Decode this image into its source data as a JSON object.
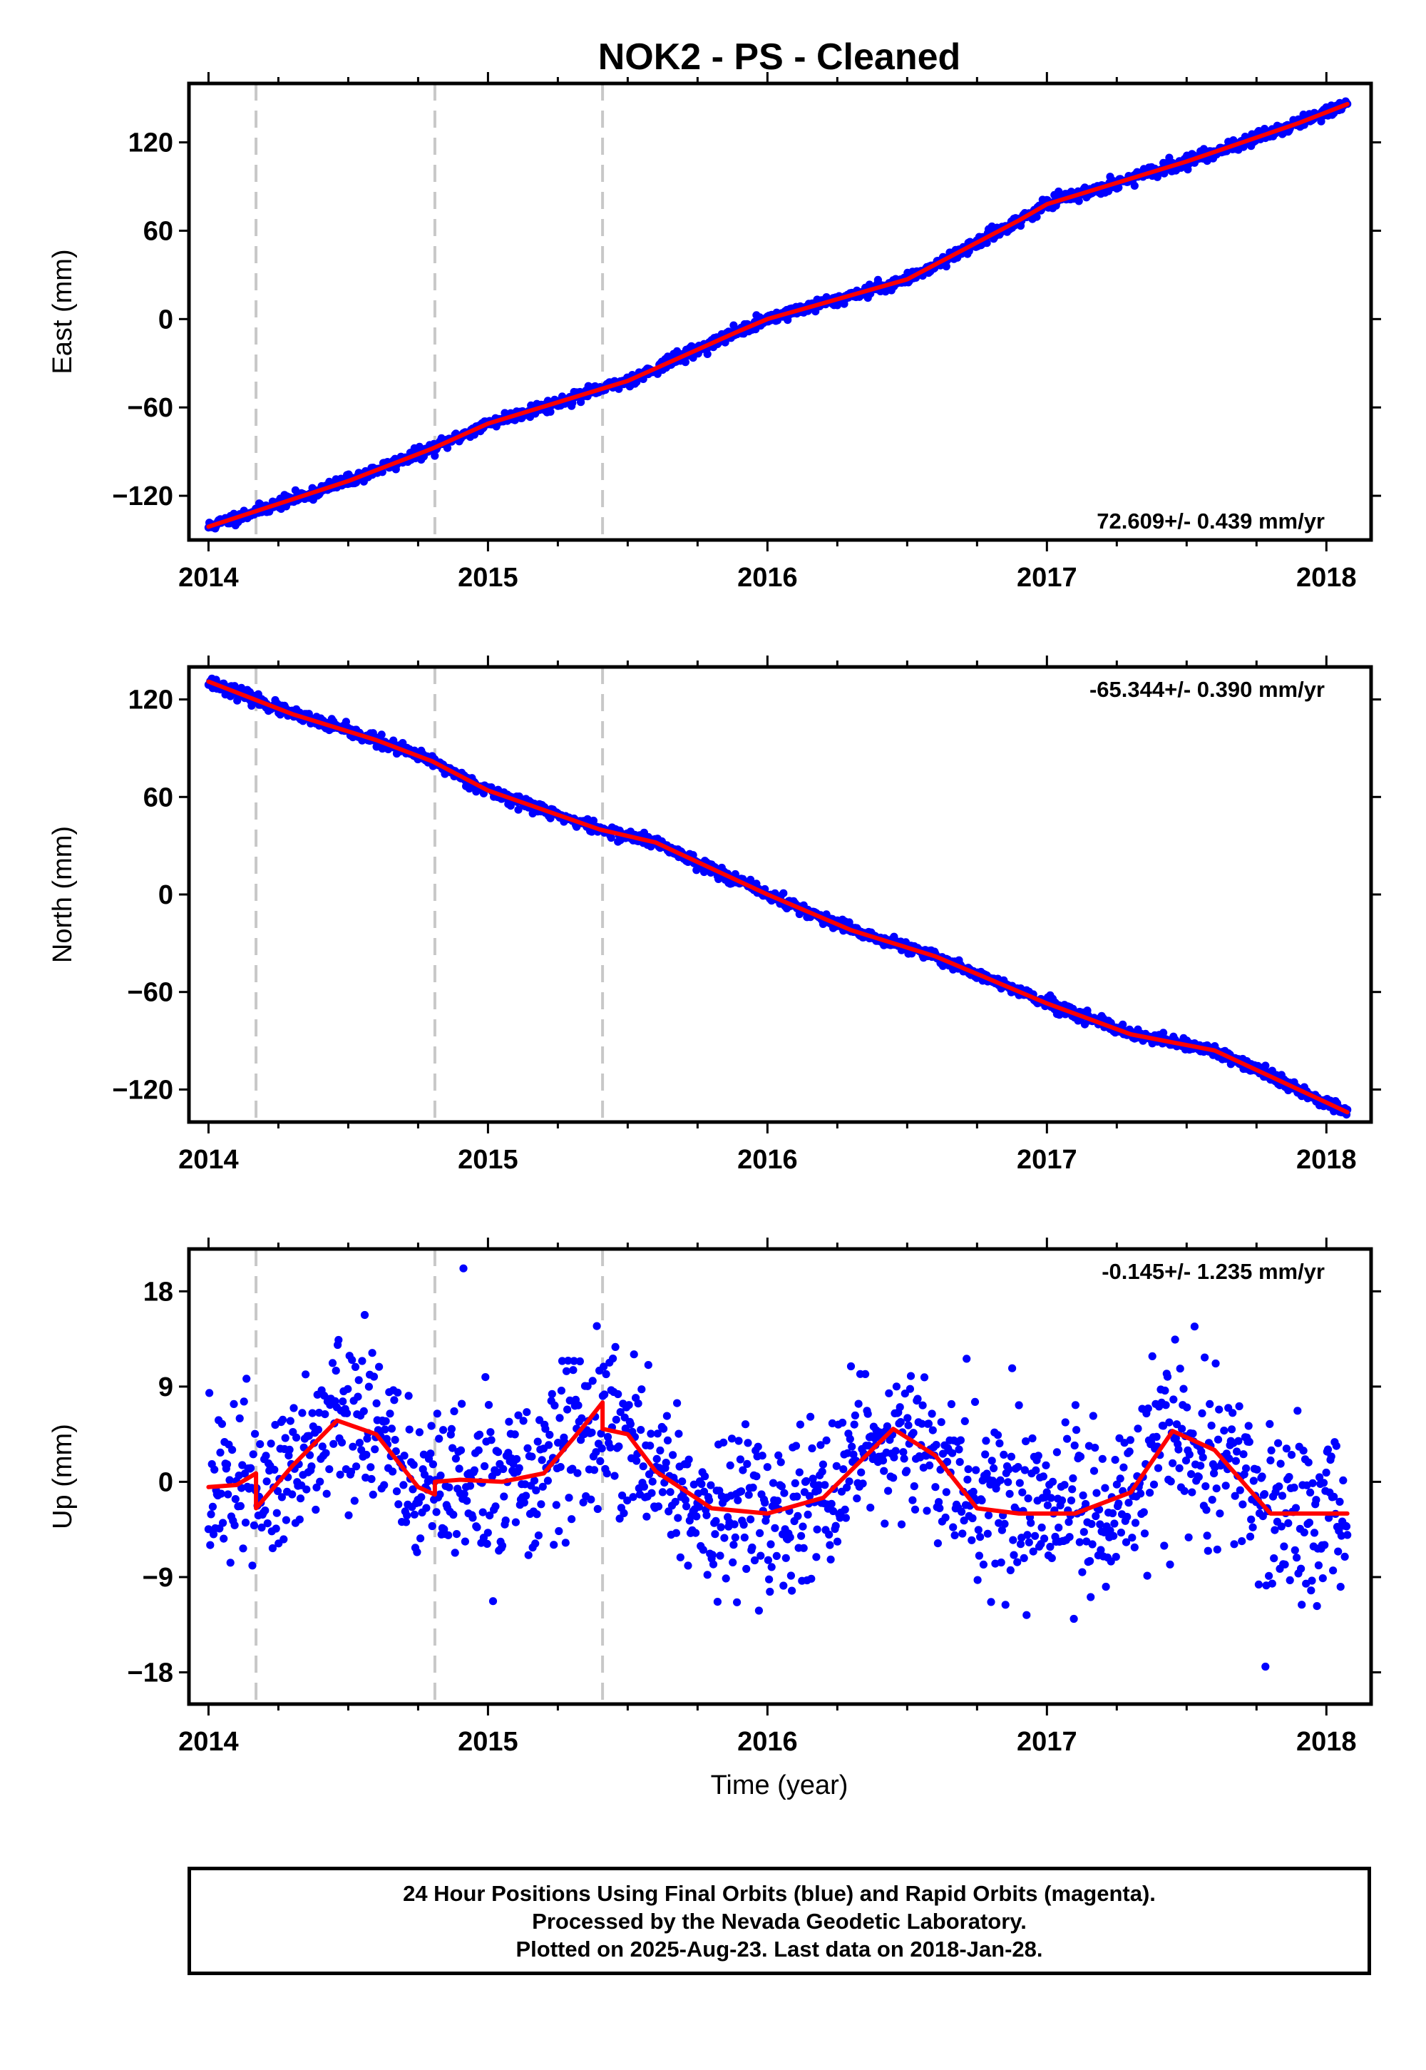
{
  "title": "NOK2  - PS - Cleaned",
  "xlabel": "Time (year)",
  "footer": {
    "line1": "24 Hour Positions Using Final Orbits (blue) and Rapid Orbits (magenta).",
    "line2": "Processed by the Nevada Geodetic Laboratory.",
    "line3": "Plotted on 2025-Aug-23. Last data on 2018-Jan-28."
  },
  "colors": {
    "points": "#0000ff",
    "model": "#ff0000",
    "steps": "#c8c8c8",
    "frame": "#000000"
  },
  "chart_data": [
    {
      "type": "scatter",
      "component": "East",
      "ylabel": "East (mm)",
      "rate_label": "72.609+/- 0.439 mm/yr",
      "rate_position": "bottom-right",
      "xlim": [
        2013.93,
        2018.16
      ],
      "ylim": [
        -150,
        160
      ],
      "yticks": [
        -120,
        -60,
        0,
        60,
        120
      ],
      "xticks": [
        2014,
        2015,
        2016,
        2017,
        2018
      ],
      "step_epochs": [
        2014.17,
        2014.81,
        2015.41
      ],
      "data_range": [
        2014.0,
        2018.075
      ],
      "model": {
        "x": [
          2014.0,
          2014.5,
          2014.8,
          2015.0,
          2015.5,
          2015.9,
          2016.0,
          2016.5,
          2016.9,
          2017.0,
          2017.5,
          2017.9,
          2018.075
        ],
        "y": [
          -141,
          -110,
          -88,
          -71,
          -42,
          -8,
          0,
          27,
          67,
          78,
          107,
          133,
          146
        ]
      },
      "noise_sd": 2.0,
      "points": {
        "n": 1350,
        "seed": 11
      }
    },
    {
      "type": "scatter",
      "component": "North",
      "ylabel": "North (mm)",
      "rate_label": "-65.344+/- 0.390 mm/yr",
      "rate_position": "top-right",
      "xlim": [
        2013.93,
        2018.16
      ],
      "ylim": [
        -140,
        140
      ],
      "yticks": [
        -120,
        -60,
        0,
        60,
        120
      ],
      "xticks": [
        2014,
        2015,
        2016,
        2017,
        2018
      ],
      "step_epochs": [
        2014.17,
        2014.81,
        2015.41
      ],
      "data_range": [
        2014.0,
        2018.075
      ],
      "model": {
        "x": [
          2014.0,
          2014.3,
          2014.6,
          2014.8,
          2015.0,
          2015.4,
          2015.6,
          2016.0,
          2016.3,
          2016.6,
          2017.0,
          2017.3,
          2017.6,
          2018.075
        ],
        "y": [
          131,
          111,
          95,
          82,
          64,
          40,
          32,
          0,
          -22,
          -38,
          -67,
          -86,
          -96,
          -134
        ]
      },
      "noise_sd": 1.8,
      "points": {
        "n": 1350,
        "seed": 23
      }
    },
    {
      "type": "scatter",
      "component": "Up",
      "ylabel": "Up (mm)",
      "rate_label": "-0.145+/- 1.235 mm/yr",
      "rate_position": "top-right",
      "xlim": [
        2013.93,
        2018.16
      ],
      "ylim": [
        -21,
        22
      ],
      "yticks": [
        -18,
        -9,
        0,
        9,
        18
      ],
      "xticks": [
        2014,
        2015,
        2016,
        2017,
        2018
      ],
      "step_epochs": [
        2014.17,
        2014.81,
        2015.41
      ],
      "data_range": [
        2014.0,
        2018.075
      ],
      "model": {
        "x": [
          2014.0,
          2014.1,
          2014.17,
          2014.17,
          2014.3,
          2014.46,
          2014.6,
          2014.75,
          2014.81,
          2014.81,
          2014.9,
          2015.05,
          2015.2,
          2015.35,
          2015.41,
          2015.41,
          2015.5,
          2015.6,
          2015.8,
          2016.0,
          2016.2,
          2016.45,
          2016.6,
          2016.75,
          2016.9,
          2017.1,
          2017.3,
          2017.45,
          2017.6,
          2017.8,
          2018.075
        ],
        "y": [
          -0.5,
          -0.3,
          0.8,
          -2.5,
          1.5,
          5.8,
          4.5,
          -0.5,
          -1.2,
          0,
          0.2,
          0,
          0.8,
          5.5,
          7.5,
          5,
          4.5,
          1,
          -2.5,
          -3,
          -1.5,
          5,
          2.5,
          -2.5,
          -3,
          -3,
          -1,
          4.8,
          3,
          -3,
          -3
        ]
      },
      "noise_sd": 3.6,
      "points": {
        "n": 1350,
        "seed": 37
      }
    }
  ]
}
